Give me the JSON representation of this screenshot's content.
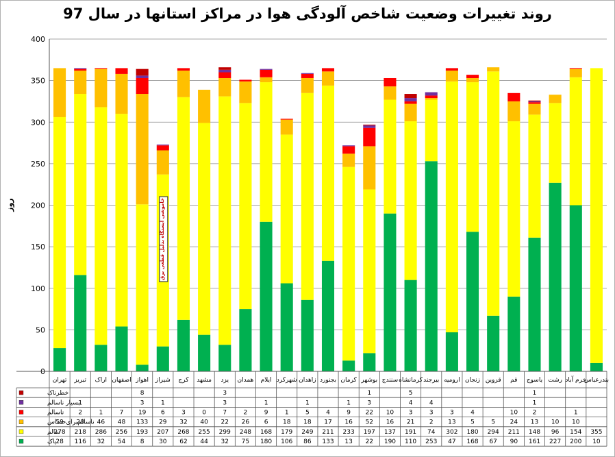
{
  "chart_data": {
    "type": "bar",
    "stacked": true,
    "title": "روند تغییرات وضعیت شاخص آلودگی هوا در مراکز استانها در سال 97",
    "ylabel": "روز",
    "xlabel": "",
    "ylim": [
      0,
      400
    ],
    "yticks": [
      0,
      50,
      100,
      150,
      200,
      250,
      300,
      350,
      400
    ],
    "grid": true,
    "categories": [
      "تهران",
      "تبریز",
      "اراک",
      "اصفهان",
      "اهواز",
      "شیراز",
      "کرج",
      "مشهد",
      "یزد",
      "همدان",
      "ایلام",
      "شهرکرد",
      "زاهدان",
      "بجنورد",
      "کرمان",
      "بوشهر",
      "سنندج",
      "کرمانشاه",
      "بیرجند",
      "ارومیه",
      "زنجان",
      "قزوین",
      "قم",
      "یاسوج",
      "رشت",
      "خرم آباد",
      "بندرعباس"
    ],
    "series": [
      {
        "name": "پاک",
        "color": "#00b050",
        "values": [
          28,
          116,
          32,
          54,
          8,
          30,
          62,
          44,
          32,
          75,
          180,
          106,
          86,
          133,
          13,
          22,
          190,
          110,
          253,
          47,
          168,
          67,
          90,
          161,
          227,
          200,
          10
        ]
      },
      {
        "name": "سالم",
        "color": "#ffff00",
        "values": [
          278,
          218,
          286,
          256,
          193,
          207,
          268,
          255,
          299,
          248,
          168,
          179,
          249,
          211,
          233,
          197,
          137,
          191,
          74,
          302,
          180,
          294,
          211,
          148,
          96,
          154,
          355
        ]
      },
      {
        "name": "ناسالم‌برای‌حساس",
        "color": "#ffc000",
        "values": [
          59,
          28,
          46,
          48,
          133,
          29,
          32,
          40,
          22,
          26,
          6,
          18,
          18,
          17,
          16,
          52,
          16,
          21,
          2,
          13,
          5,
          5,
          24,
          13,
          10,
          10,
          null
        ]
      },
      {
        "name": "ناسالم",
        "color": "#ff0000",
        "values": [
          null,
          2,
          1,
          7,
          19,
          6,
          3,
          0,
          7,
          2,
          9,
          1,
          5,
          4,
          9,
          22,
          10,
          3,
          3,
          3,
          4,
          null,
          10,
          2,
          null,
          1,
          null
        ]
      },
      {
        "name": "بسیار ناسالم",
        "color": "#7030a0",
        "values": [
          null,
          1,
          null,
          null,
          3,
          1,
          null,
          null,
          3,
          null,
          1,
          null,
          1,
          null,
          1,
          3,
          null,
          4,
          4,
          null,
          null,
          null,
          null,
          1,
          null,
          null,
          null
        ]
      },
      {
        "name": "خطرناک",
        "color": "#c00000",
        "values": [
          null,
          null,
          null,
          null,
          8,
          null,
          null,
          null,
          3,
          null,
          null,
          null,
          null,
          null,
          null,
          1,
          null,
          5,
          null,
          null,
          null,
          null,
          null,
          1,
          null,
          null,
          null
        ]
      }
    ],
    "table_order": [
      "خطرناک",
      "بسیار ناسالم",
      "ناسالم",
      "ناسالم‌برای‌حساس",
      "سالم",
      "پاک"
    ],
    "annotation": "خاموشی ایستگاه بدلیل قطعی برق"
  }
}
